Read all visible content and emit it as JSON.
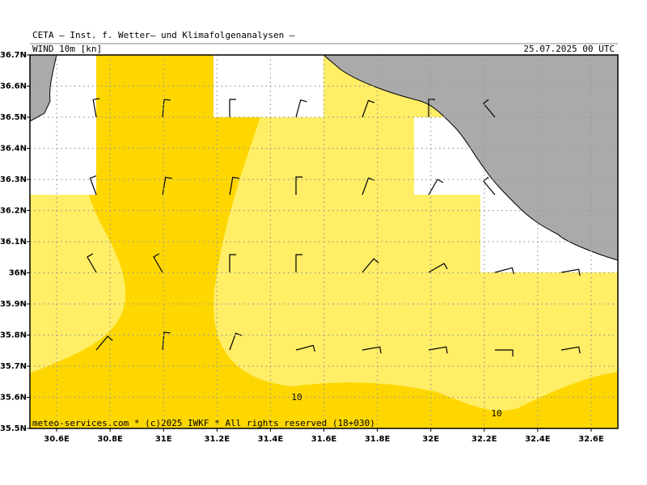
{
  "header": {
    "title": "CETA — Inst. f. Wetter— und Klimafolgenanalysen —",
    "field": "WIND  10m  [kn]",
    "date": "25.07.2025  00  UTC"
  },
  "map": {
    "xlim": [
      30.5,
      32.7
    ],
    "ylim": [
      35.5,
      36.7
    ],
    "xticks": [
      {
        "value": 30.6,
        "label": "30.6E"
      },
      {
        "value": 30.8,
        "label": "30.8E"
      },
      {
        "value": 31,
        "label": "31E"
      },
      {
        "value": 31.2,
        "label": "31.2E"
      },
      {
        "value": 31.4,
        "label": "31.4E"
      },
      {
        "value": 31.6,
        "label": "31.6E"
      },
      {
        "value": 31.8,
        "label": "31.8E"
      },
      {
        "value": 32,
        "label": "32E"
      },
      {
        "value": 32.2,
        "label": "32.2E"
      },
      {
        "value": 32.4,
        "label": "32.4E"
      },
      {
        "value": 32.6,
        "label": "32.6E"
      }
    ],
    "yticks": [
      {
        "value": 36.7,
        "label": "36.7N"
      },
      {
        "value": 36.6,
        "label": "36.6N"
      },
      {
        "value": 36.5,
        "label": "36.5N"
      },
      {
        "value": 36.4,
        "label": "36.4N"
      },
      {
        "value": 36.3,
        "label": "36.3N"
      },
      {
        "value": 36.2,
        "label": "36.2N"
      },
      {
        "value": 36.1,
        "label": "36.1N"
      },
      {
        "value": 36,
        "label": "36N"
      },
      {
        "value": 35.9,
        "label": "35.9N"
      },
      {
        "value": 35.8,
        "label": "35.8N"
      },
      {
        "value": 35.7,
        "label": "35.7N"
      },
      {
        "value": 35.6,
        "label": "35.6N"
      },
      {
        "value": 35.5,
        "label": "35.5N"
      }
    ],
    "contour_labels": [
      "10",
      "10"
    ]
  },
  "footer": "meteo-services.com * (c)2025 IWKF * All rights reserved (18+030)"
}
